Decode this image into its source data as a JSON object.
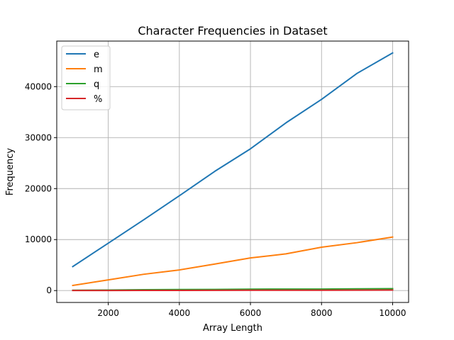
{
  "chart_data": {
    "type": "line",
    "title": "Character Frequencies in Dataset",
    "xlabel": "Array Length",
    "ylabel": "Frequency",
    "xlim": [
      550,
      10450
    ],
    "ylim": [
      -2330,
      48930
    ],
    "xticks": [
      2000,
      4000,
      6000,
      8000,
      10000
    ],
    "yticks": [
      0,
      10000,
      20000,
      30000,
      40000
    ],
    "grid": true,
    "legend_position": "upper-left",
    "x": [
      1000,
      2000,
      3000,
      4000,
      5000,
      6000,
      7000,
      8000,
      9000,
      10000
    ],
    "series": [
      {
        "name": "e",
        "color": "#1f77b4",
        "values": [
          4700,
          9300,
          13900,
          18600,
          23400,
          27800,
          32900,
          37500,
          42600,
          46600
        ]
      },
      {
        "name": "m",
        "color": "#ff7f0e",
        "values": [
          1000,
          2100,
          3200,
          4050,
          5200,
          6400,
          7200,
          8500,
          9400,
          10500
        ]
      },
      {
        "name": "q",
        "color": "#2ca02c",
        "values": [
          60,
          110,
          170,
          200,
          230,
          270,
          300,
          290,
          340,
          370
        ]
      },
      {
        "name": "%",
        "color": "#d62728",
        "values": [
          10,
          20,
          30,
          40,
          50,
          60,
          70,
          75,
          85,
          95
        ]
      }
    ]
  }
}
